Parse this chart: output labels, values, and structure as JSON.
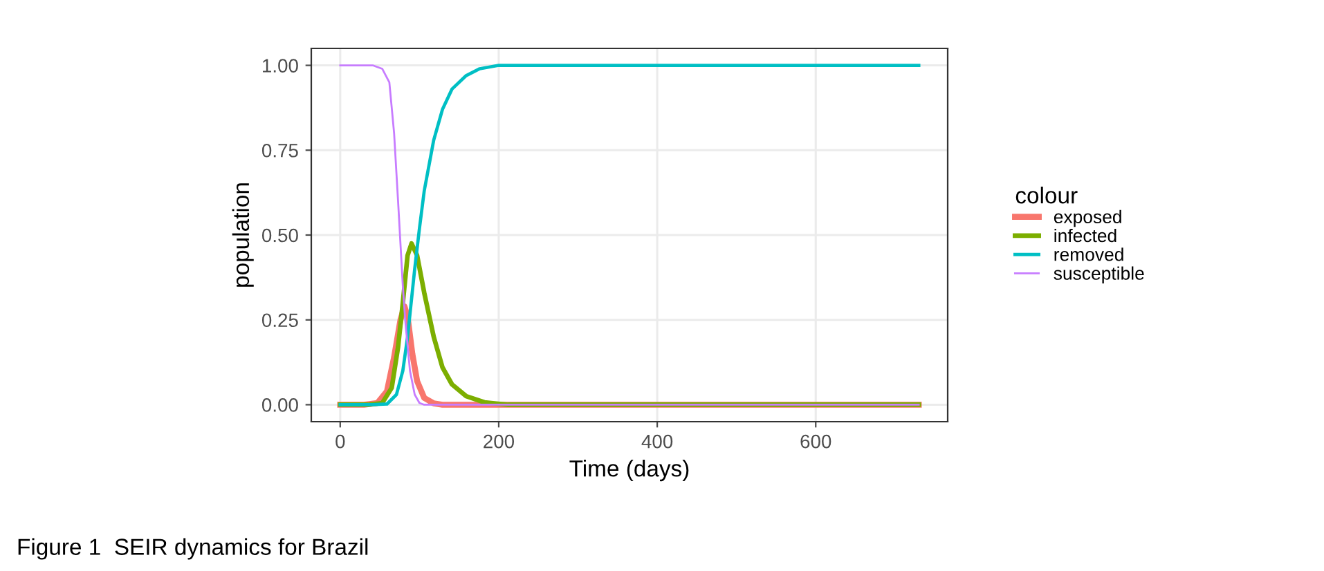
{
  "chart_data": {
    "type": "line",
    "xlabel": "Time (days)",
    "ylabel": "population",
    "legend_title": "colour",
    "legend": "right",
    "grid": true,
    "xlim": [
      -36.5,
      766.5
    ],
    "xticks": [
      0,
      200,
      400,
      600
    ],
    "ylim": [
      -0.05,
      1.05
    ],
    "yticks": [
      {
        "value": 0,
        "label": "0.00"
      },
      {
        "value": 0.25,
        "label": "0.25"
      },
      {
        "value": 0.5,
        "label": "0.50"
      },
      {
        "value": 0.75,
        "label": "0.75"
      },
      {
        "value": 1,
        "label": "1.00"
      }
    ],
    "series": [
      {
        "name": "exposed",
        "color": "#f8766d",
        "x": [
          0,
          30,
          47,
          59,
          68,
          76,
          81,
          85,
          91,
          97,
          106,
          118,
          129,
          200,
          730
        ],
        "values": [
          0,
          0,
          0.005,
          0.04,
          0.14,
          0.25,
          0.29,
          0.26,
          0.15,
          0.07,
          0.02,
          0.004,
          0,
          0,
          0
        ]
      },
      {
        "name": "infected",
        "color": "#7cae00",
        "x": [
          0,
          35,
          53,
          65,
          73,
          79,
          85,
          90,
          97,
          106,
          118,
          129,
          141,
          159,
          182,
          212,
          730
        ],
        "values": [
          0,
          0,
          0.005,
          0.05,
          0.17,
          0.3,
          0.44,
          0.475,
          0.44,
          0.33,
          0.2,
          0.11,
          0.06,
          0.025,
          0.007,
          0,
          0
        ]
      },
      {
        "name": "removed",
        "color": "#00bfc4",
        "x": [
          0,
          40,
          59,
          71,
          79,
          85,
          94,
          100,
          106,
          118,
          129,
          141,
          159,
          176,
          200,
          730
        ],
        "values": [
          0,
          0,
          0.002,
          0.03,
          0.1,
          0.2,
          0.4,
          0.52,
          0.63,
          0.78,
          0.87,
          0.93,
          0.97,
          0.99,
          1,
          1
        ]
      },
      {
        "name": "susceptible",
        "color": "#c77cff",
        "x": [
          0,
          41,
          53,
          62,
          68,
          73,
          79,
          82,
          88,
          94,
          100,
          106,
          730
        ],
        "values": [
          1,
          1,
          0.99,
          0.95,
          0.8,
          0.6,
          0.35,
          0.25,
          0.1,
          0.03,
          0.005,
          0,
          0
        ]
      }
    ],
    "annotations": [
      "Figure 1  SEIR dynamics for Brazil"
    ]
  }
}
